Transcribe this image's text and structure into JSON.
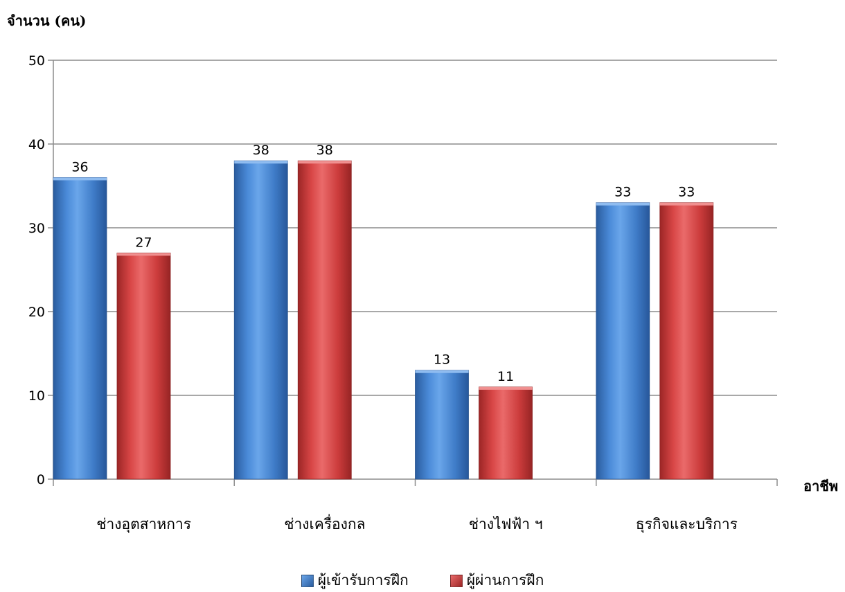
{
  "chart_data": {
    "type": "bar",
    "title": "",
    "ylabel": "จำนวน (คน)",
    "xlabel": "อาชีพ",
    "categories": [
      "ช่างอุตสาหการ",
      "ช่างเครื่องกล",
      "ช่างไฟฟ้า ฯ",
      "ธุรกิจและบริการ"
    ],
    "series": [
      {
        "name": "ผู้เข้ารับการฝึก",
        "values": [
          36,
          38,
          13,
          33
        ],
        "color": "#3b78c9"
      },
      {
        "name": "ผู้ผ่านการฝึก",
        "values": [
          27,
          38,
          11,
          33
        ],
        "color": "#c83a3a"
      }
    ],
    "ylim": [
      0,
      50
    ],
    "yticks": [
      0,
      10,
      20,
      30,
      40,
      50
    ],
    "grid": true,
    "legend_position": "bottom",
    "data_labels": true
  }
}
